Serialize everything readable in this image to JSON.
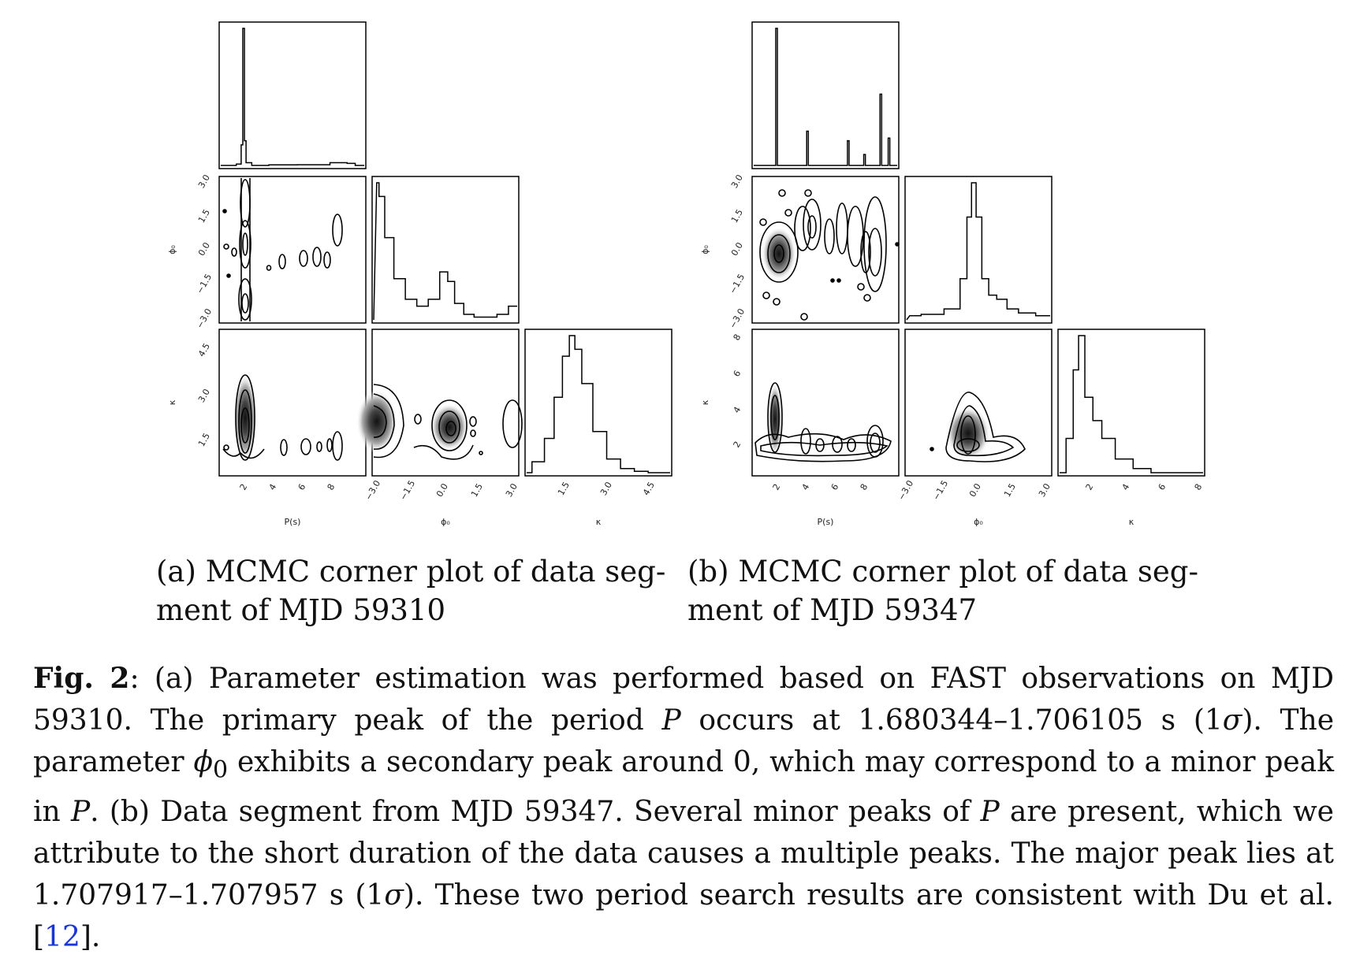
{
  "figure": {
    "panels": [
      {
        "id": "a",
        "caption": "(a) MCMC corner plot of data segment of MJD 59310",
        "caption_line1": "(a) MCMC corner plot of data seg-",
        "caption_line2": "ment of MJD 59310",
        "x_labels": [
          "P(s)",
          "ϕ₀",
          "κ"
        ],
        "y_labels": [
          "ϕ₀",
          "κ"
        ],
        "ticks": {
          "P": [
            "2",
            "4",
            "6",
            "8"
          ],
          "phi": [
            "−3.0",
            "−1.5",
            "0.0",
            "1.5",
            "3.0"
          ],
          "kappa": [
            "1.5",
            "3.0",
            "4.5"
          ]
        }
      },
      {
        "id": "b",
        "caption": "(b) MCMC corner plot of data segment of MJD 59347",
        "caption_line1": "(b) MCMC corner plot of data seg-",
        "caption_line2": "ment of MJD 59347",
        "x_labels": [
          "P(s)",
          "ϕ₀",
          "κ"
        ],
        "y_labels": [
          "ϕ₀",
          "κ"
        ],
        "ticks": {
          "P": [
            "2",
            "4",
            "6",
            "8"
          ],
          "phi": [
            "−3.0",
            "−1.5",
            "0.0",
            "1.5",
            "3.0"
          ],
          "kappa": [
            "2",
            "4",
            "6",
            "8"
          ]
        }
      }
    ]
  },
  "chart_data": [
    {
      "type": "corner",
      "title": "MCMC corner plot of data segment of MJD 59310",
      "parameters": [
        "P(s)",
        "ϕ₀",
        "κ"
      ],
      "ranges": {
        "P": [
          0.2,
          9.2
        ],
        "phi": [
          -3.2,
          3.2
        ],
        "kappa": [
          0.3,
          5.6
        ]
      },
      "marginals": {
        "P": {
          "x": [
            1.0,
            1.5,
            1.6,
            1.7,
            1.8,
            1.9,
            2.5,
            4.0,
            6.0,
            8.0,
            8.1,
            9.0
          ],
          "density": [
            0.0,
            0.01,
            0.15,
            1.0,
            0.18,
            0.02,
            0.0,
            0.004,
            0.005,
            0.02,
            0.015,
            0.0
          ]
        },
        "phi": {
          "x": [
            -3.0,
            -2.8,
            -2.5,
            -2.0,
            -1.5,
            -1.0,
            -0.5,
            0.0,
            0.2,
            0.6,
            1.0,
            1.5,
            2.0,
            2.5,
            3.0
          ],
          "density": [
            1.0,
            0.9,
            0.6,
            0.3,
            0.15,
            0.1,
            0.15,
            0.35,
            0.28,
            0.12,
            0.04,
            0.02,
            0.02,
            0.04,
            0.1
          ]
        },
        "kappa": {
          "x": [
            0.3,
            0.8,
            1.2,
            1.5,
            1.8,
            2.0,
            2.2,
            2.5,
            3.0,
            3.5,
            4.0,
            4.5,
            5.0
          ],
          "density": [
            0.0,
            0.08,
            0.25,
            0.55,
            0.85,
            1.0,
            0.9,
            0.65,
            0.3,
            0.1,
            0.03,
            0.01,
            0.0
          ]
        }
      }
    },
    {
      "type": "corner",
      "title": "MCMC corner plot of data segment of MJD 59347",
      "parameters": [
        "P(s)",
        "ϕ₀",
        "κ"
      ],
      "ranges": {
        "P": [
          0.2,
          9.2
        ],
        "phi": [
          -3.2,
          3.2
        ],
        "kappa": [
          0.3,
          8.5
        ]
      },
      "marginals": {
        "P": {
          "x": [
            1.0,
            1.6,
            1.7,
            1.8,
            3.5,
            3.6,
            3.7,
            6.0,
            6.1,
            6.2,
            7.0,
            7.1,
            7.2,
            8.0,
            8.1,
            8.2,
            8.5,
            8.6,
            8.7,
            9.0
          ],
          "density": [
            0.0,
            0.0,
            1.0,
            0.0,
            0.0,
            0.25,
            0.0,
            0.0,
            0.18,
            0.0,
            0.0,
            0.08,
            0.0,
            0.0,
            0.52,
            0.0,
            0.0,
            0.2,
            0.0,
            0.0
          ]
        },
        "phi": {
          "x": [
            -3.0,
            -2.0,
            -1.0,
            -0.6,
            -0.4,
            -0.2,
            0.0,
            0.3,
            0.6,
            1.0,
            1.5,
            2.0,
            3.0
          ],
          "density": [
            0.03,
            0.04,
            0.08,
            0.3,
            0.75,
            1.0,
            0.75,
            0.3,
            0.18,
            0.15,
            0.08,
            0.05,
            0.03
          ]
        },
        "kappa": {
          "x": [
            0.5,
            1.0,
            1.3,
            1.6,
            2.0,
            2.5,
            3.0,
            4.0,
            5.0,
            6.0,
            8.0
          ],
          "density": [
            0.0,
            0.25,
            0.75,
            1.0,
            0.55,
            0.38,
            0.25,
            0.1,
            0.03,
            0.0,
            0.0
          ]
        }
      }
    }
  ],
  "main_caption": {
    "label": "Fig. 2",
    "t01": ": (a) Parameter estimation was performed based on FAST observations on MJD 59310. The primary peak of the period ",
    "P1": "P",
    "t02": " occurs at 1.680344–1.706105 s (1",
    "sigma1": "σ",
    "t03": "). The parameter ",
    "phi": "ϕ",
    "phi_sub": "0",
    "t04": " exhibits a secondary peak around 0, which may correspond to a minor peak in ",
    "P2": "P",
    "t05": ". (b) Data segment from MJD 59347. Several minor peaks of ",
    "P3": "P",
    "t06": " are present, which we attribute to the short duration of the data causes a multiple peaks. The major peak lies at 1.707917–1.707957 s (1",
    "sigma2": "σ",
    "t07": "). These two period search results are consistent with Du et al. ",
    "ref_open": "[",
    "ref_num": "12",
    "ref_close": "]",
    "t08": "."
  }
}
